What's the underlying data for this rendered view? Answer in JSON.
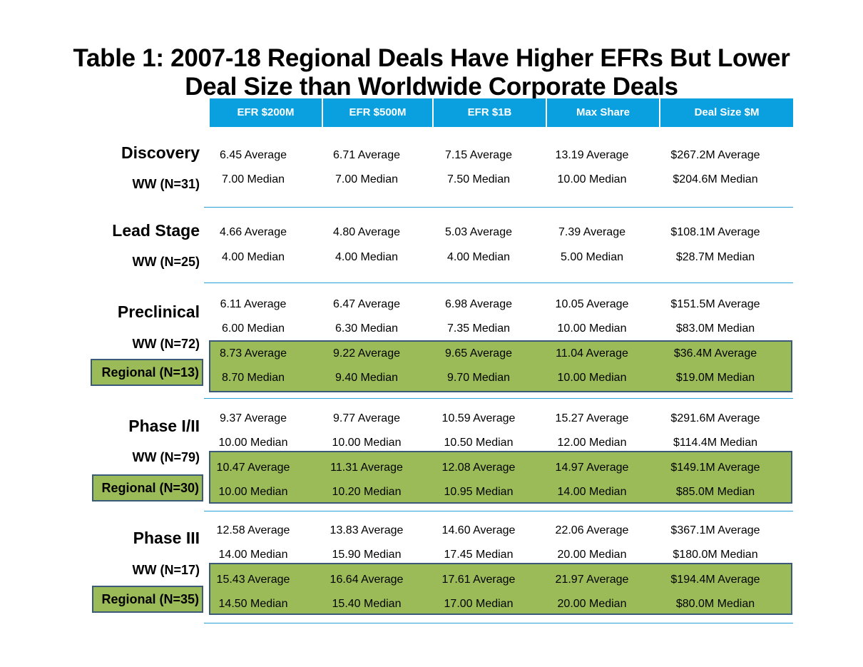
{
  "title": {
    "line1": "Table 1:  2007-18 Regional Deals Have Higher EFRs But Lower",
    "line2": "Deal Size than Worldwide Corporate Deals"
  },
  "columns": [
    "EFR $200M",
    "EFR $500M",
    "EFR $1B",
    "Max Share",
    "Deal Size $M"
  ],
  "stages": [
    {
      "name": "Discovery",
      "ww_label": "WW (N=31)",
      "ww": {
        "average": [
          "6.45 Average",
          "6.71 Average",
          "7.15 Average",
          "13.19 Average",
          "$267.2M Average"
        ],
        "median": [
          "7.00 Median",
          "7.00 Median",
          "7.50 Median",
          "10.00 Median",
          "$204.6M Median"
        ]
      }
    },
    {
      "name": "Lead Stage",
      "ww_label": "WW (N=25)",
      "ww": {
        "average": [
          "4.66 Average",
          "4.80 Average",
          "5.03 Average",
          "7.39 Average",
          "$108.1M Average"
        ],
        "median": [
          "4.00 Median",
          "4.00 Median",
          "4.00 Median",
          "5.00 Median",
          "$28.7M Median"
        ]
      }
    },
    {
      "name": "Preclinical",
      "ww_label": "WW (N=72)",
      "regional_label": "Regional (N=13)",
      "ww": {
        "average": [
          "6.11 Average",
          "6.47 Average",
          "6.98 Average",
          "10.05 Average",
          "$151.5M Average"
        ],
        "median": [
          "6.00 Median",
          "6.30 Median",
          "7.35 Median",
          "10.00 Median",
          "$83.0M Median"
        ]
      },
      "regional": {
        "average": [
          "8.73 Average",
          "9.22 Average",
          "9.65 Average",
          "11.04 Average",
          "$36.4M Average"
        ],
        "median": [
          "8.70 Median",
          "9.40 Median",
          "9.70 Median",
          "10.00 Median",
          "$19.0M Median"
        ]
      }
    },
    {
      "name": "Phase I/II",
      "ww_label": "WW (N=79)",
      "regional_label": "Regional (N=30)",
      "ww": {
        "average": [
          "9.37 Average",
          "9.77 Average",
          "10.59 Average",
          "15.27 Average",
          "$291.6M Average"
        ],
        "median": [
          "10.00 Median",
          "10.00 Median",
          "10.50 Median",
          "12.00 Median",
          "$114.4M Median"
        ]
      },
      "regional": {
        "average": [
          "10.47 Average",
          "11.31 Average",
          "12.08 Average",
          "14.97 Average",
          "$149.1M Average"
        ],
        "median": [
          "10.00 Median",
          "10.20 Median",
          "10.95 Median",
          "14.00 Median",
          "$85.0M Median"
        ]
      }
    },
    {
      "name": "Phase III",
      "ww_label": "WW (N=17)",
      "regional_label": "Regional (N=35)",
      "ww": {
        "average": [
          "12.58 Average",
          "13.83 Average",
          "14.60 Average",
          "22.06 Average",
          "$367.1M Average"
        ],
        "median": [
          "14.00 Median",
          "15.90 Median",
          "17.45 Median",
          "20.00 Median",
          "$180.0M Median"
        ]
      },
      "regional": {
        "average": [
          "15.43 Average",
          "16.64 Average",
          "17.61 Average",
          "21.97 Average",
          "$194.4M Average"
        ],
        "median": [
          "14.50 Median",
          "15.40 Median",
          "17.00 Median",
          "20.00 Median",
          "$80.0M Median"
        ]
      }
    }
  ]
}
